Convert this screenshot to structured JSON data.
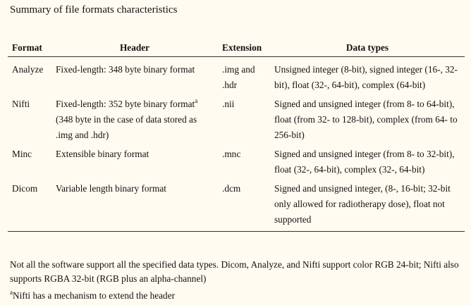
{
  "caption": "Summary of file formats characteristics",
  "table": {
    "headers": [
      "Format",
      "Header",
      "Extension",
      "Data types"
    ],
    "rows": [
      {
        "format": "Analyze",
        "header": "Fixed-length: 348 byte binary format",
        "header_sup": "",
        "header_note": "",
        "extension": ".img and .hdr",
        "data_types": "Unsigned integer (8-bit), signed integer (16-, 32-bit), float (32-, 64-bit), complex (64-bit)"
      },
      {
        "format": "Nifti",
        "header": "Fixed-length: 352 byte binary format",
        "header_sup": "a",
        "header_note": "(348 byte in the case of data stored as .img and .hdr)",
        "extension": ".nii",
        "data_types": "Signed and unsigned integer (from 8- to 64-bit), float (from 32- to 128-bit), complex (from 64- to 256-bit)"
      },
      {
        "format": "Minc",
        "header": "Extensible binary format",
        "header_sup": "",
        "header_note": "",
        "extension": ".mnc",
        "data_types": "Signed and unsigned integer (from 8- to 32-bit), float (32-, 64-bit), complex (32-, 64-bit)"
      },
      {
        "format": "Dicom",
        "header": "Variable length binary format",
        "header_sup": "",
        "header_note": "",
        "extension": ".dcm",
        "data_types": "Signed and unsigned integer, (8-, 16-bit; 32-bit only allowed for radiotherapy dose), float not supported"
      }
    ]
  },
  "notes": {
    "general": "Not all the software support all the specified data types. Dicom, Analyze, and Nifti support color RGB 24-bit; Nifti also supports RGBA 32-bit (RGB plus an alpha-channel)",
    "footnote_mark": "a",
    "footnote": "Nifti has a mechanism to extend the header"
  }
}
